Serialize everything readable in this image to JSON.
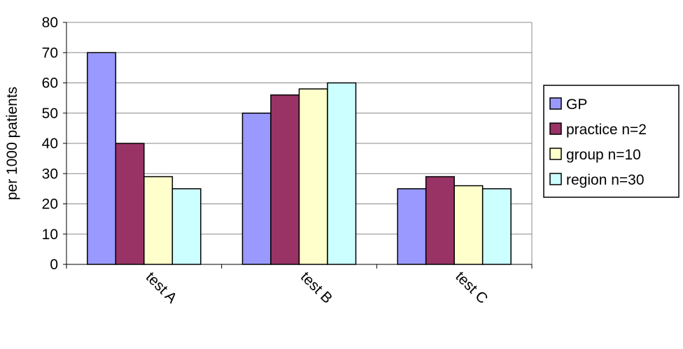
{
  "chart_data": {
    "type": "bar",
    "y_label": "per 1000 patients",
    "categories": [
      "test A",
      "test B",
      "test C"
    ],
    "series": [
      {
        "name": "GP",
        "color": "#9999ff",
        "values": [
          70,
          50,
          25
        ]
      },
      {
        "name": "practice n=2",
        "color": "#993366",
        "values": [
          40,
          56,
          29
        ]
      },
      {
        "name": "group n=10",
        "color": "#ffffcc",
        "values": [
          29,
          58,
          26
        ]
      },
      {
        "name": "region n=30",
        "color": "#ccffff",
        "values": [
          25,
          60,
          25
        ]
      }
    ],
    "ylim": [
      0,
      80
    ],
    "yticks": [
      0,
      10,
      20,
      30,
      40,
      50,
      60,
      70,
      80
    ],
    "grid": true,
    "legend": "right"
  }
}
